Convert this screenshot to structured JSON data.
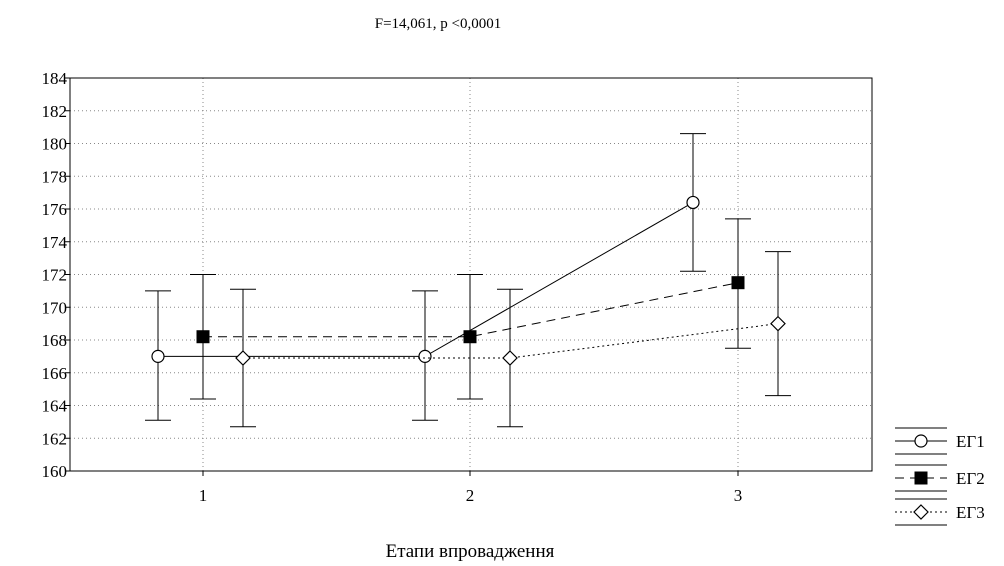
{
  "chart_data": {
    "type": "line",
    "title": "F=14,061, p  <0,0001",
    "xlabel": "Етапи впровадження",
    "ylabel": "",
    "categories": [
      "1",
      "2",
      "3"
    ],
    "ylim": [
      160,
      184
    ],
    "yticks": [
      "160",
      "162",
      "164",
      "166",
      "168",
      "170",
      "172",
      "174",
      "176",
      "178",
      "180",
      "182",
      "184"
    ],
    "grid": true,
    "legend_position": "bottom-right",
    "series": [
      {
        "name": "ЕГ1",
        "values": [
          167.0,
          167.0,
          176.4
        ],
        "err_low": [
          163.1,
          163.1,
          172.2
        ],
        "err_high": [
          171.0,
          171.0,
          180.6
        ],
        "marker": "circle-open",
        "line": "solid"
      },
      {
        "name": "ЕГ2",
        "values": [
          168.2,
          168.2,
          171.5
        ],
        "err_low": [
          164.4,
          164.4,
          167.5
        ],
        "err_high": [
          172.0,
          172.0,
          175.4
        ],
        "marker": "square-filled",
        "line": "dashed"
      },
      {
        "name": "ЕГ3",
        "values": [
          166.9,
          166.9,
          169.0
        ],
        "err_low": [
          162.7,
          162.7,
          164.6
        ],
        "err_high": [
          171.1,
          171.1,
          173.4
        ],
        "marker": "diamond-open",
        "line": "dotted"
      }
    ]
  }
}
